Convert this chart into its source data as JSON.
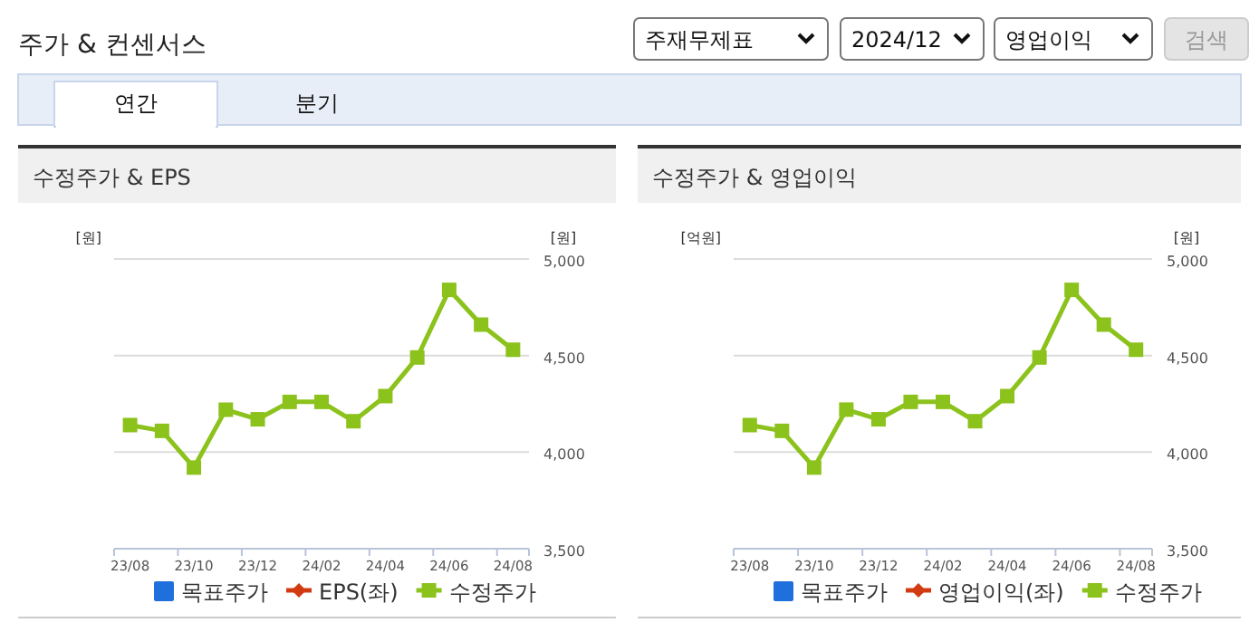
{
  "chart_data": [
    {
      "type": "other",
      "title": "주가 & 컨센서스",
      "annotations": [
        "주재무제표",
        "2024/12",
        "영업이익",
        "검색",
        "연간",
        "분기"
      ]
    },
    {
      "type": "line",
      "title": "수정주가 & EPS",
      "ylabel": "[원]",
      "y2label": "[원]",
      "categories": [
        "23/08",
        null,
        "23/10",
        null,
        "23/12",
        null,
        "24/02",
        null,
        "24/04",
        null,
        "24/06",
        null,
        "24/08"
      ],
      "series": [
        {
          "name": "목표주가",
          "type": "bar",
          "color": "#1f6fdc",
          "values": [
            null,
            null,
            null,
            null,
            null,
            null,
            null,
            null,
            null,
            null,
            null,
            null,
            null
          ]
        },
        {
          "name": "EPS(좌)",
          "type": "line",
          "color": "#d23a12",
          "marker": "diamond",
          "values": [
            null,
            null,
            null,
            null,
            null,
            null,
            null,
            null,
            null,
            null,
            null,
            null,
            null
          ]
        },
        {
          "name": "수정주가",
          "type": "line",
          "color": "#8cc21c",
          "marker": "square",
          "axis": "y2",
          "values": [
            4140,
            4110,
            3920,
            4220,
            4170,
            4260,
            4260,
            4160,
            4290,
            4490,
            4840,
            4660,
            4530
          ]
        }
      ],
      "y2lim": [
        3500,
        5000
      ],
      "y2ticks": [
        {
          "value": 3500,
          "label": "3,500"
        },
        {
          "value": 4000,
          "label": "4,000"
        },
        {
          "value": 4500,
          "label": "4,500"
        },
        {
          "value": 5000,
          "label": "5,000"
        }
      ],
      "grid": "y",
      "legend": "bottom"
    },
    {
      "type": "line",
      "title": "수정주가 & 영업이익",
      "ylabel": "[억원]",
      "y2label": "[원]",
      "categories": [
        "23/08",
        null,
        "23/10",
        null,
        "23/12",
        null,
        "24/02",
        null,
        "24/04",
        null,
        "24/06",
        null,
        "24/08"
      ],
      "series": [
        {
          "name": "목표주가",
          "type": "bar",
          "color": "#1f6fdc",
          "values": [
            null,
            null,
            null,
            null,
            null,
            null,
            null,
            null,
            null,
            null,
            null,
            null,
            null
          ]
        },
        {
          "name": "영업이익(좌)",
          "type": "line",
          "color": "#d23a12",
          "marker": "diamond",
          "values": [
            null,
            null,
            null,
            null,
            null,
            null,
            null,
            null,
            null,
            null,
            null,
            null,
            null
          ]
        },
        {
          "name": "수정주가",
          "type": "line",
          "color": "#8cc21c",
          "marker": "square",
          "axis": "y2",
          "values": [
            4140,
            4110,
            3920,
            4220,
            4170,
            4260,
            4260,
            4160,
            4290,
            4490,
            4840,
            4660,
            4530
          ]
        }
      ],
      "y2lim": [
        3500,
        5000
      ],
      "y2ticks": [
        {
          "value": 3500,
          "label": "3,500"
        },
        {
          "value": 4000,
          "label": "4,000"
        },
        {
          "value": 4500,
          "label": "4,500"
        },
        {
          "value": 5000,
          "label": "5,000"
        }
      ],
      "grid": "y",
      "legend": "bottom"
    }
  ]
}
